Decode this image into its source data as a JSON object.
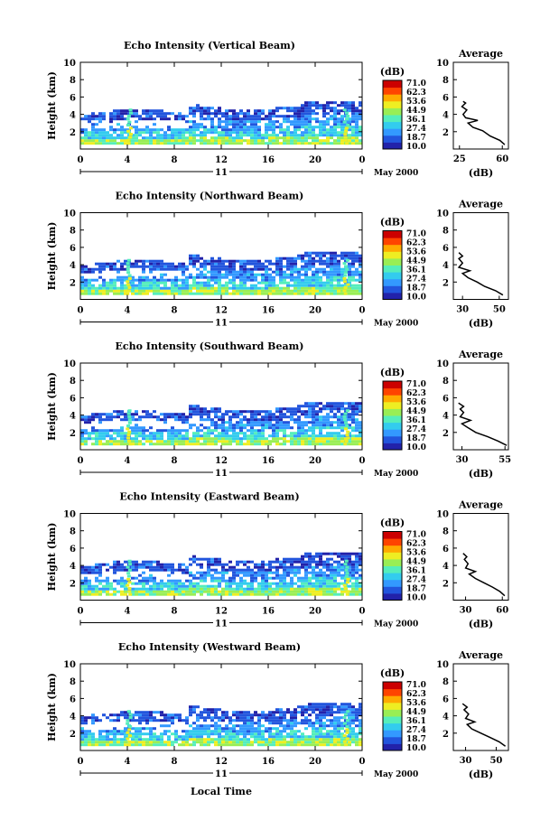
{
  "colorbar": {
    "unit": "(dB)",
    "tick_labels": [
      "71.0",
      "62.3",
      "53.6",
      "44.9",
      "36.1",
      "27.4",
      "18.7",
      "10.0"
    ],
    "colors": [
      "#2222aa",
      "#2255dd",
      "#3399ff",
      "#33ccee",
      "#55eebb",
      "#99ee55",
      "#eeee22",
      "#ffaa00",
      "#ff4400",
      "#cc0000"
    ]
  },
  "xaxis": {
    "ticks": [
      "0",
      "4",
      "8",
      "12",
      "16",
      "20",
      "0"
    ],
    "day": "11",
    "month": "May 2000"
  },
  "x_label": "Local Time",
  "chart_data": [
    {
      "type": "heatmap",
      "title": "Echo Intensity (Vertical Beam)",
      "ylabel": "Height (km)",
      "y_ticks": [
        "2",
        "4",
        "6",
        "8",
        "10"
      ],
      "ylim": [
        0,
        10
      ],
      "xlim": [
        0,
        24
      ],
      "cloud_top_km": 5.3,
      "average": {
        "title": "Average",
        "xlabel": "(dB)",
        "x_ticks": [
          "25",
          "60"
        ],
        "xlim": [
          20,
          65
        ],
        "profile": [
          [
            62,
            0.5
          ],
          [
            58,
            1
          ],
          [
            50,
            1.5
          ],
          [
            44,
            2.1
          ],
          [
            36,
            2.5
          ],
          [
            32,
            3
          ],
          [
            40,
            3.3
          ],
          [
            30,
            3.6
          ],
          [
            28,
            4
          ],
          [
            31,
            4.5
          ],
          [
            27,
            4.9
          ],
          [
            30,
            5.3
          ],
          [
            28,
            5.5
          ]
        ]
      }
    },
    {
      "type": "heatmap",
      "title": "Echo Intensity (Northward Beam)",
      "ylabel": "Height (km)",
      "y_ticks": [
        "2",
        "4",
        "6",
        "8",
        "10"
      ],
      "ylim": [
        0,
        10
      ],
      "xlim": [
        0,
        24
      ],
      "cloud_top_km": 5.3,
      "average": {
        "title": "Average",
        "xlabel": "(dB)",
        "x_ticks": [
          "30",
          "50"
        ],
        "xlim": [
          25,
          55
        ],
        "profile": [
          [
            52,
            0.5
          ],
          [
            48,
            1
          ],
          [
            42,
            1.5
          ],
          [
            38,
            2
          ],
          [
            33,
            2.5
          ],
          [
            30,
            3
          ],
          [
            34,
            3.3
          ],
          [
            28,
            3.7
          ],
          [
            30,
            4.2
          ],
          [
            28,
            4.7
          ],
          [
            30,
            5
          ],
          [
            28,
            5.4
          ]
        ]
      }
    },
    {
      "type": "heatmap",
      "title": "Echo Intensity (Southward Beam)",
      "ylabel": "Height (km)",
      "y_ticks": [
        "2",
        "4",
        "6",
        "8",
        "10"
      ],
      "ylim": [
        0,
        10
      ],
      "xlim": [
        0,
        24
      ],
      "cloud_top_km": 5.3,
      "average": {
        "title": "Average",
        "xlabel": "(dB)",
        "x_ticks": [
          "30",
          "55"
        ],
        "xlim": [
          25,
          57
        ],
        "profile": [
          [
            56,
            0.5
          ],
          [
            51,
            1
          ],
          [
            45,
            1.5
          ],
          [
            38,
            2
          ],
          [
            33,
            2.6
          ],
          [
            30,
            3
          ],
          [
            35,
            3.4
          ],
          [
            29,
            3.8
          ],
          [
            31,
            4.3
          ],
          [
            29,
            4.7
          ],
          [
            31,
            5
          ],
          [
            28,
            5.4
          ]
        ]
      }
    },
    {
      "type": "heatmap",
      "title": "Echo Intensity (Eastward Beam)",
      "ylabel": "Height (km)",
      "y_ticks": [
        "2",
        "4",
        "6",
        "8",
        "10"
      ],
      "ylim": [
        0,
        10
      ],
      "xlim": [
        0,
        24
      ],
      "cloud_top_km": 5.3,
      "average": {
        "title": "Average",
        "xlabel": "(dB)",
        "x_ticks": [
          "30",
          "60"
        ],
        "xlim": [
          20,
          65
        ],
        "profile": [
          [
            62,
            0.5
          ],
          [
            58,
            1
          ],
          [
            52,
            1.5
          ],
          [
            45,
            2
          ],
          [
            38,
            2.5
          ],
          [
            33,
            3
          ],
          [
            38,
            3.3
          ],
          [
            30,
            3.7
          ],
          [
            32,
            4.2
          ],
          [
            29,
            4.7
          ],
          [
            31,
            5
          ],
          [
            28,
            5.4
          ]
        ]
      }
    },
    {
      "type": "heatmap",
      "title": "Echo Intensity (Westward Beam)",
      "ylabel": "Height (km)",
      "y_ticks": [
        "2",
        "4",
        "6",
        "8",
        "10"
      ],
      "ylim": [
        0,
        10
      ],
      "xlim": [
        0,
        24
      ],
      "cloud_top_km": 5.3,
      "average": {
        "title": "Average",
        "xlabel": "(dB)",
        "x_ticks": [
          "30",
          "50"
        ],
        "xlim": [
          22,
          58
        ],
        "profile": [
          [
            56,
            0.5
          ],
          [
            52,
            1
          ],
          [
            46,
            1.5
          ],
          [
            40,
            2
          ],
          [
            34,
            2.5
          ],
          [
            31,
            3
          ],
          [
            36,
            3.3
          ],
          [
            30,
            3.7
          ],
          [
            32,
            4.2
          ],
          [
            29,
            4.7
          ],
          [
            31,
            5
          ],
          [
            28,
            5.4
          ]
        ]
      }
    }
  ]
}
